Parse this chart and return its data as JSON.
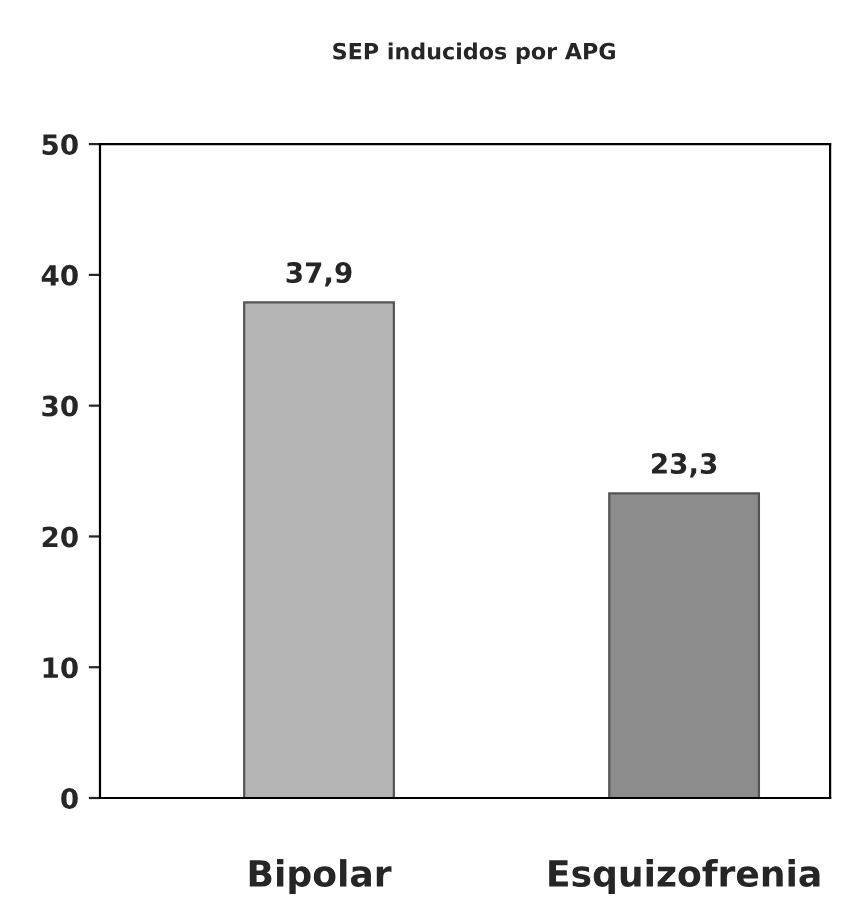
{
  "chart_data": {
    "type": "bar",
    "title": "SEP inducidos por APG",
    "categories": [
      "Bipolar",
      "Esquizofrenia"
    ],
    "values": [
      37.9,
      23.3
    ],
    "colors": [
      "#b4b4b4",
      "#8c8c8c"
    ],
    "value_labels": [
      "37,9",
      "23,3"
    ],
    "ylim": [
      0,
      50
    ],
    "yticks": [
      0,
      10,
      20,
      30,
      40,
      50
    ],
    "grid": false,
    "legend": false
  }
}
